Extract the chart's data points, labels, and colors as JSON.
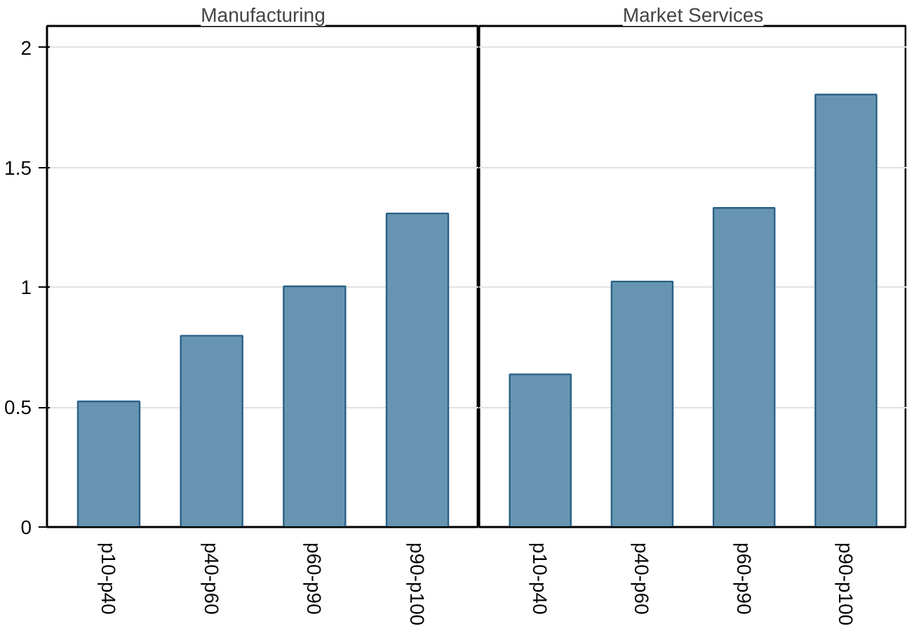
{
  "chart_data": [
    {
      "type": "bar",
      "title": "Manufacturing",
      "categories": [
        "p10-p40",
        "p40-p60",
        "p60-p90",
        "p90-p100"
      ],
      "values": [
        0.524,
        0.798,
        1.004,
        1.308
      ],
      "color": "#6795b1",
      "ylim": [
        0,
        2.09
      ],
      "yticks": [
        0,
        0.5,
        1,
        1.5,
        2
      ],
      "grid": "y"
    },
    {
      "type": "bar",
      "title": "Market Services",
      "categories": [
        "p10-p40",
        "p40-p60",
        "p60-p90",
        "p90-p100"
      ],
      "values": [
        0.637,
        1.024,
        1.331,
        1.804
      ],
      "color": "#6795b1",
      "ylim": [
        0,
        2.09
      ],
      "yticks": [
        0,
        0.5,
        1,
        1.5,
        2
      ],
      "grid": "y",
      "tick_labels": "x"
    }
  ]
}
